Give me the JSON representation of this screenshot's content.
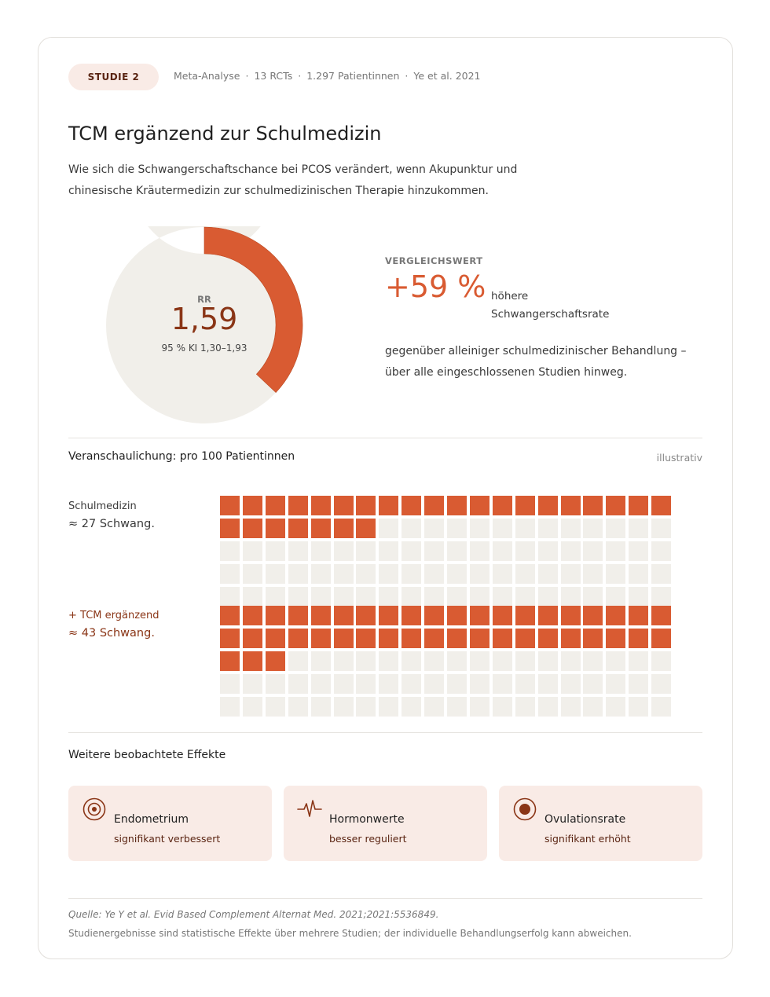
{
  "header": {
    "badge": "STUDIE 2",
    "meta": [
      "Meta-Analyse",
      "13 RCTs",
      "1.297 Patientinnen",
      "Ye et al. 2021"
    ],
    "separator": "·"
  },
  "title": "TCM ergänzend zur Schulmedizin",
  "subtitle": "Wie sich die Schwangerschaftschance bei PCOS verändert, wenn Akupunktur und chinesische Kräutermedizin zur schulmedizinischen Therapie hinzukommen.",
  "donut": {
    "label": "RR",
    "value_text": "1,59",
    "ci_text": "95 % KI 1,30–1,93"
  },
  "comparison": {
    "label": "VERGLEICHSWERT",
    "big": "+59 %",
    "unit": "höhere Schwangerschaftsrate",
    "text": "gegenüber alleiniger schulmedizinischer Behandlung – über alle eingeschlossenen Studien hinweg."
  },
  "visualization": {
    "title": "Veranschaulichung: pro 100 Patientinnen",
    "note": "illustrativ",
    "groups": [
      {
        "label": "Schulmedizin",
        "value_text": "≈ 27 Schwang."
      },
      {
        "label": "+ TCM ergänzend",
        "value_text": "≈ 43 Schwang."
      }
    ]
  },
  "chart_data": [
    {
      "type": "pie",
      "categories": [
        "RR 1,59",
        ""
      ],
      "values": [
        0.37,
        0.63
      ],
      "title": "",
      "annotations": [
        "RR",
        "1,59",
        "95 % KI 1,30–1,93"
      ]
    },
    {
      "type": "bar",
      "categories": [
        "Schulmedizin",
        "+ TCM ergänzend"
      ],
      "values": [
        27,
        43
      ],
      "total": 100,
      "title": "Veranschaulichung: pro 100 Patientinnen"
    }
  ],
  "effects": {
    "title": "Weitere beobachtete Effekte",
    "items": [
      {
        "icon": "target-icon",
        "title": "Endometrium",
        "sub": "signifikant verbessert"
      },
      {
        "icon": "pulse-icon",
        "title": "Hormonwerte",
        "sub": "besser reguliert"
      },
      {
        "icon": "dot-circle-icon",
        "title": "Ovulationsrate",
        "sub": "signifikant erhöht"
      }
    ]
  },
  "footer": {
    "source": "Quelle: Ye Y et al. Evid Based Complement Alternat Med. 2021;2021:5536849.",
    "disclaimer": "Studienergebnisse sind statistische Effekte über mehrere Studien; der individuelle Behandlungserfolg kann abweichen."
  },
  "colors": {
    "accent": "#d95b32",
    "accent_dark": "#8a3516",
    "track": "#f1efea",
    "badge_bg": "#f9ebe6"
  }
}
